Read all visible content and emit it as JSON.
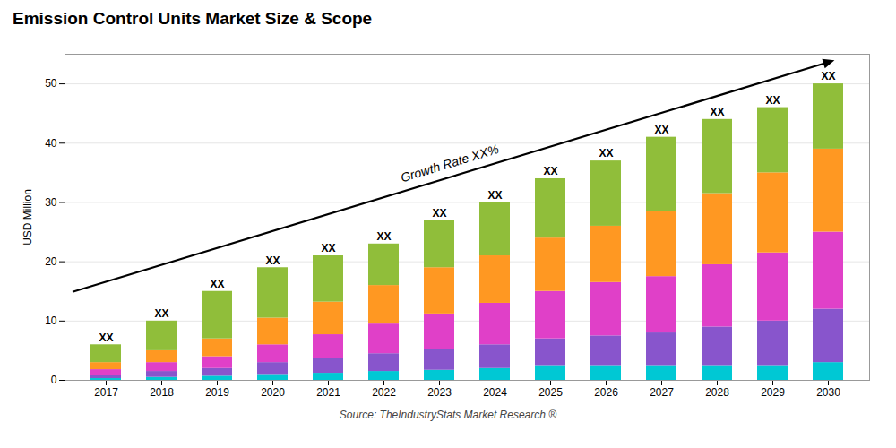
{
  "chart_data": {
    "type": "bar",
    "stacked": true,
    "title": "Emission Control Units Market Size & Scope",
    "ylabel": "USD Million",
    "categories": [
      "2017",
      "2018",
      "2019",
      "2020",
      "2021",
      "2022",
      "2023",
      "2024",
      "2025",
      "2026",
      "2027",
      "2028",
      "2029",
      "2030"
    ],
    "series": [
      {
        "color": "#00c8d4",
        "values": [
          0.3,
          0.5,
          0.7,
          1.0,
          1.2,
          1.5,
          1.7,
          2.0,
          2.5,
          2.5,
          2.5,
          2.5,
          2.5,
          3.0
        ]
      },
      {
        "color": "#8855cc",
        "values": [
          0.5,
          1.0,
          1.3,
          2.0,
          2.5,
          3.0,
          3.5,
          4.0,
          4.5,
          5.0,
          5.5,
          6.5,
          7.5,
          9.0
        ]
      },
      {
        "color": "#e040c8",
        "values": [
          1.0,
          1.5,
          2.0,
          3.0,
          4.0,
          5.0,
          6.0,
          7.0,
          8.0,
          9.0,
          9.5,
          10.5,
          11.5,
          13.0
        ]
      },
      {
        "color": "#ff9822",
        "values": [
          1.2,
          2.0,
          3.0,
          4.5,
          5.5,
          6.5,
          7.8,
          8.0,
          9.0,
          9.5,
          11.0,
          12.0,
          13.5,
          14.0
        ]
      },
      {
        "color": "#90be3a",
        "values": [
          3.0,
          5.0,
          8.0,
          8.5,
          7.8,
          7.0,
          8.0,
          9.0,
          10.0,
          11.0,
          12.5,
          12.5,
          11.0,
          11.0
        ]
      }
    ],
    "total_labels": [
      "XX",
      "XX",
      "XX",
      "XX",
      "XX",
      "XX",
      "XX",
      "XX",
      "XX",
      "XX",
      "XX",
      "XX",
      "XX",
      "XX"
    ],
    "ylim": [
      0,
      55
    ],
    "yticks": [
      0,
      10,
      20,
      30,
      40,
      50
    ],
    "grid": true,
    "annotations": [
      {
        "text": "Growth Rate XX%"
      }
    ],
    "source": "Source: TheIndustryStats Market Research ®"
  }
}
